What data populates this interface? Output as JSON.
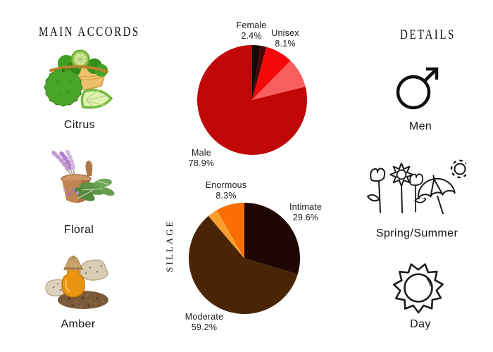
{
  "theme": {
    "background": "#ffffff",
    "text_color": "#1b1b1b"
  },
  "accords": {
    "title": "MAIN ACCORDS",
    "items": [
      {
        "label": "Citrus",
        "icon": "bergamot-basket-photo"
      },
      {
        "label": "Floral",
        "icon": "sage-mortar-photo"
      },
      {
        "label": "Amber",
        "icon": "amber-oil-bottle-photo"
      }
    ]
  },
  "details": {
    "title": "DETAILS",
    "items": [
      {
        "label": "Men",
        "icon": "male-symbol-icon"
      },
      {
        "label": "Spring/Summer",
        "icon": "flowers-umbrella-sun-icon"
      },
      {
        "label": "Day",
        "icon": "sun-icon"
      }
    ]
  },
  "chart_data": [
    {
      "type": "pie",
      "name": "gender-votes-pie",
      "title": "",
      "legend_position": "none",
      "slices": [
        {
          "label": "Female",
          "pct": "2.4%",
          "value": 2.4,
          "color": "#1b0404"
        },
        {
          "label": "",
          "pct": "",
          "value": 1.8,
          "color": "#460808"
        },
        {
          "label": "Unisex",
          "pct": "8.1%",
          "value": 8.1,
          "color": "#f60808"
        },
        {
          "label": "",
          "pct": "",
          "value": 8.8,
          "color": "#f75f5f"
        },
        {
          "label": "Male",
          "pct": "78.9%",
          "value": 78.9,
          "color": "#c10606"
        }
      ]
    },
    {
      "type": "pie",
      "name": "sillage-votes-pie",
      "axis_label": "SILLAGE",
      "legend_position": "none",
      "slices": [
        {
          "label": "Intimate",
          "pct": "29.6%",
          "value": 29.6,
          "color": "#1f0804"
        },
        {
          "label": "Moderate",
          "pct": "59.2%",
          "value": 59.2,
          "color": "#492506"
        },
        {
          "label": "",
          "pct": "",
          "value": 2.9,
          "color": "#fb9e2e"
        },
        {
          "label": "Enormous",
          "pct": "8.3%",
          "value": 8.3,
          "color": "#f96d05"
        }
      ]
    }
  ]
}
